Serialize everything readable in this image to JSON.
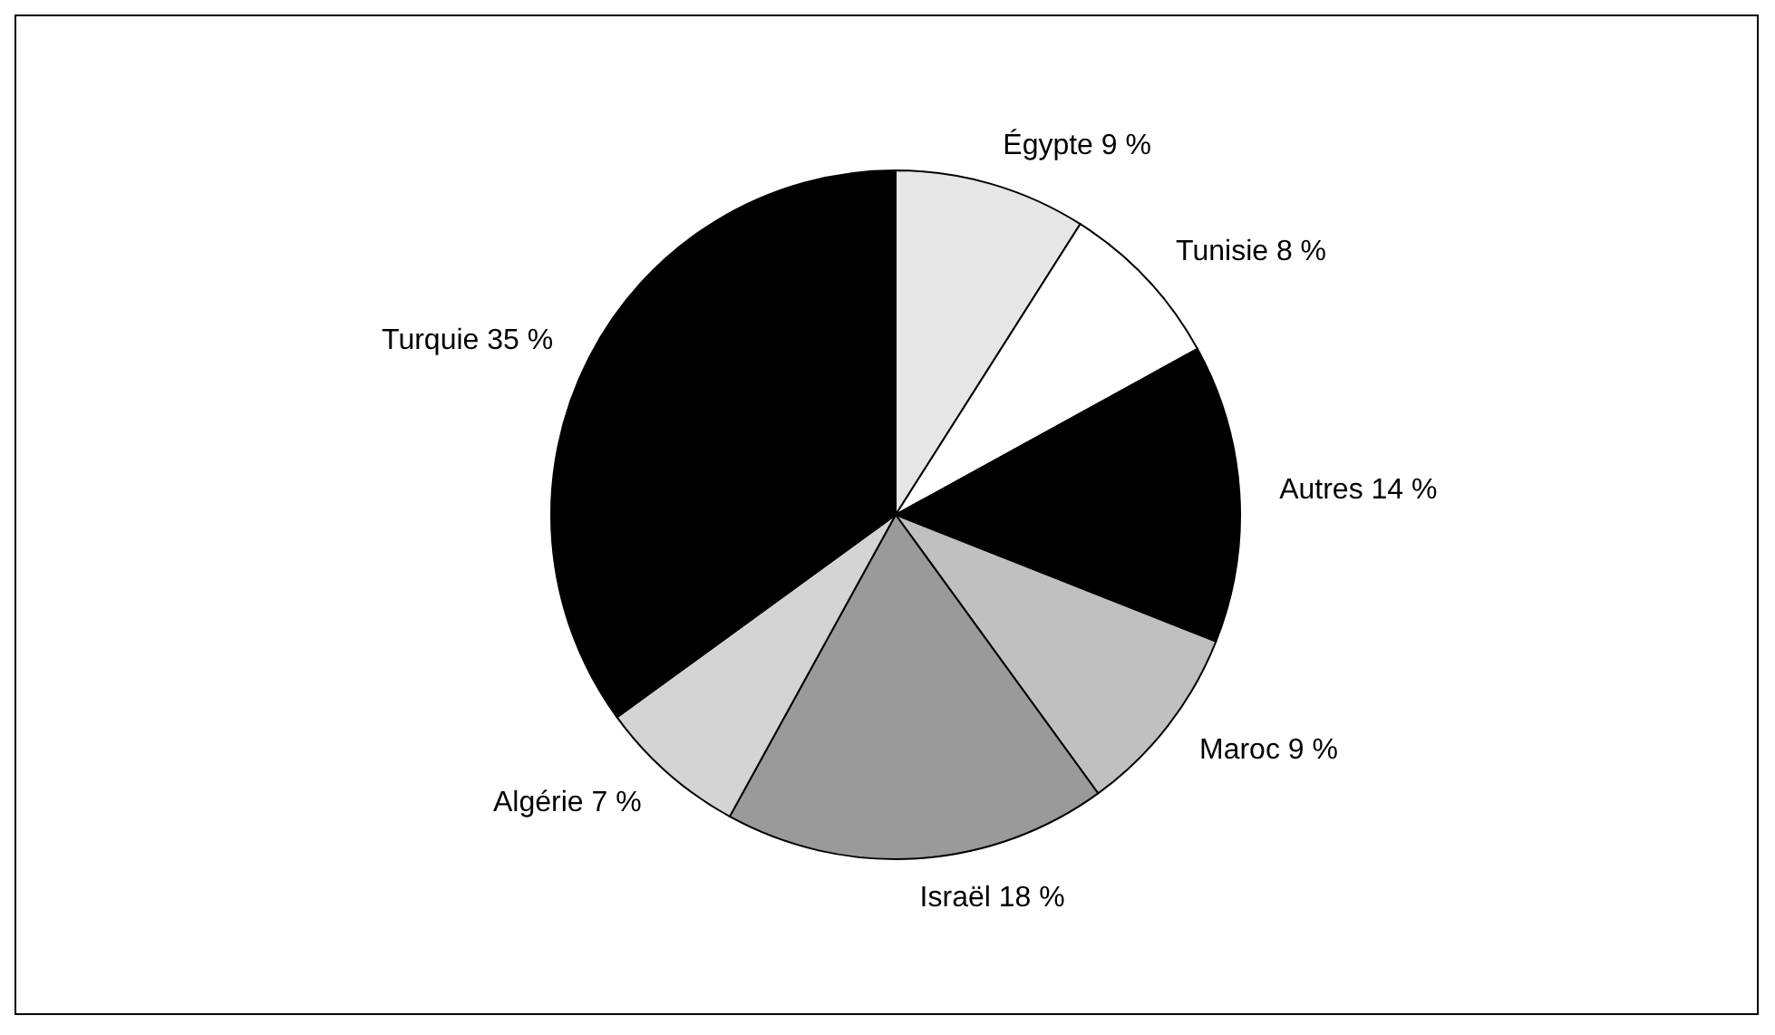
{
  "chart_data": {
    "type": "pie",
    "categories": [
      "Égypte",
      "Tunisie",
      "Autres",
      "Maroc",
      "Israël",
      "Algérie",
      "Turquie"
    ],
    "values": [
      9,
      8,
      14,
      9,
      18,
      7,
      35
    ],
    "value_labels": [
      "9 %",
      "8 %",
      "14 %",
      "9 %",
      "18 %",
      "7 %",
      "35 %"
    ],
    "colors": [
      "#e6e6e6",
      "#ffffff",
      "#000000",
      "#c0c0c0",
      "#9a9a9a",
      "#d4d4d4",
      "#000000"
    ]
  }
}
